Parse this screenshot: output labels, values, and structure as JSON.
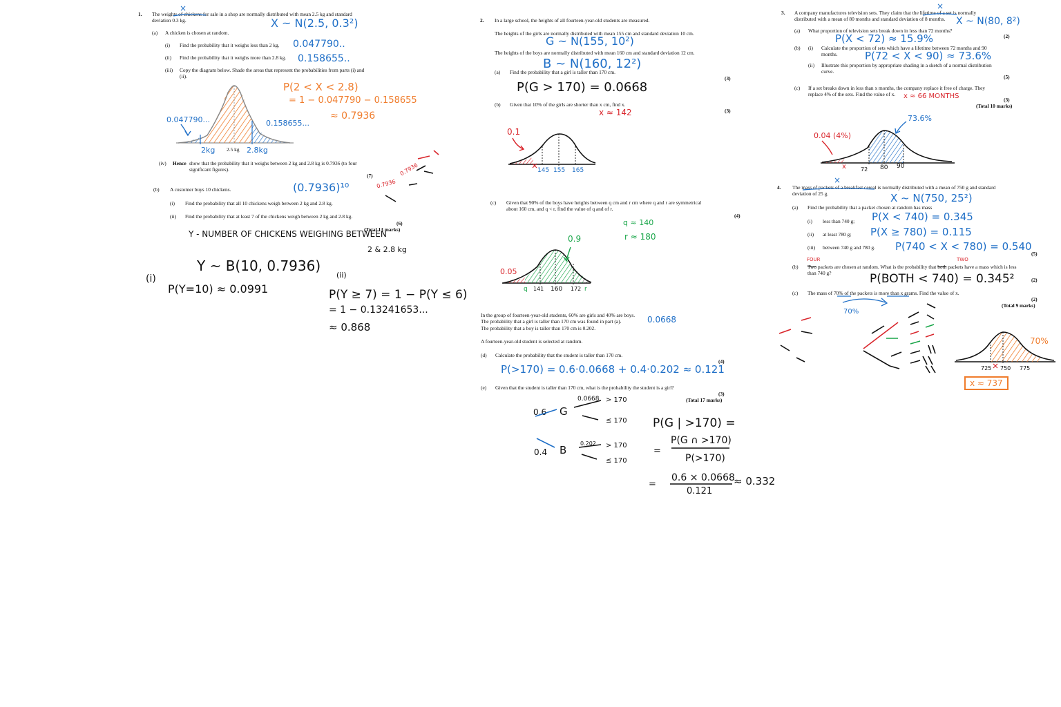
{
  "q1": {
    "num": "1.",
    "stem": "The weights of chickens for sale in a shop are normally distributed with mean 2.5 kg and standard deviation 0.3 kg.",
    "a_label": "(a)",
    "a_text": "A chicken is chosen at random.",
    "i_label": "(i)",
    "i_text": "Find the probability that it weighs less than 2 kg.",
    "ii_label": "(ii)",
    "ii_text": "Find the probability that it weighs more than 2.8 kg.",
    "iii_label": "(iii)",
    "iii_text": "Copy the diagram below. Shade the areas that represent the probabilities from parts (i) and (ii).",
    "diagram_axis": "2.5 kg",
    "iv_label": "(iv)",
    "iv_bold": "Hence",
    "iv_text": "show that the probability that it weighs between 2 kg and 2.8 kg is 0.7936 (to four significant figures).",
    "marks_a": "(7)",
    "b_label": "(b)",
    "b_text": "A customer buys 10 chickens.",
    "bi_label": "(i)",
    "bi_text": "Find the probability that all 10 chickens weigh between 2 kg and 2.8 kg.",
    "bii_label": "(ii)",
    "bii_text": "Find the probability that at least 7 of the chickens weigh between 2 kg and 2.8 kg.",
    "marks_b": "(6)",
    "total": "(Total 13 marks)"
  },
  "q1_hw": {
    "dist": "X ~ N(2.5, 0.3²)",
    "x_mark": "×",
    "ans_i": "0.047790..",
    "ans_ii": "0.158655..",
    "p_between": "P(2 < X < 2.8)",
    "calc1": "= 1 − 0.047790 − 0.158655",
    "calc2": "≈ 0.7936",
    "left_val": "0.047790...",
    "right_val": "0.158655...",
    "lbl_2kg": "2kg",
    "lbl_28kg": "2.8kg",
    "pow": "(0.7936)¹⁰",
    "y_def1": "Y - NUMBER OF CHICKENS WEIGHING BETWEEN",
    "y_def2": "2 & 2.8 kg",
    "y_dist": "Y ~ B(10, 0.7936)",
    "bi_lbl": "(i)",
    "bi_ans": "P(Y=10) ≈ 0.0991",
    "bii_lbl": "(ii)",
    "bii_1": "P(Y ≥ 7) = 1 − P(Y ≤ 6)",
    "bii_2": "= 1 − 0.13241653...",
    "bii_3": "≈ 0.868",
    "tree_a": "0.7936",
    "tree_b": "0.7936"
  },
  "q2": {
    "num": "2.",
    "stem": "In a large school, the heights of all fourteen-year-old students are measured.",
    "girls": "The heights of the girls are normally distributed with mean 155 cm and standard deviation 10 cm.",
    "boys": "The heights of the boys are normally distributed with mean 160 cm and standard deviation 12 cm.",
    "a_label": "(a)",
    "a_text": "Find the probability that a girl is taller than 170 cm.",
    "marks_a": "(3)",
    "b_label": "(b)",
    "b_text": "Given that 10% of the girls are shorter than x cm, find x.",
    "marks_b": "(3)",
    "c_label": "(c)",
    "c_text": "Given that 90% of the boys have heights between q cm and r cm where q and r are symmetrical about 160 cm, and q < r, find the value of q and of r.",
    "marks_c": "(4)",
    "group1": "In the group of fourteen-year-old students, 60% are girls and 40% are boys.",
    "group2": "The probability that a girl is taller than 170 cm was found in part (a).",
    "group3": "The probability that a boy is taller than 170 cm is 0.202.",
    "random": "A fourteen-year-old student is selected at random.",
    "d_label": "(d)",
    "d_text": "Calculate the probability that the student is taller than 170 cm.",
    "marks_d": "(4)",
    "e_label": "(e)",
    "e_text": "Given that the student is taller than 170 cm, what is the probability the student is a girl?",
    "marks_e": "(3)",
    "total": "(Total 17 marks)"
  },
  "q2_hw": {
    "g_dist": "G ~ N(155, 10²)",
    "b_dist": "B ~ N(160, 12²)",
    "a_ans": "P(G > 170) = 0.0668",
    "b_ans": "x ≈ 142",
    "b_p": "0.1",
    "b_ticks": [
      "145",
      "155",
      "165"
    ],
    "c_q": "q ≈ 140",
    "c_r": "r ≈ 180",
    "c_p": "0.9",
    "c_tail": "0.05",
    "c_ticks": [
      "q",
      "141",
      "160",
      "172",
      "r"
    ],
    "group_ans": "0.0668",
    "d_ans": "P(>170) = 0.6·0.0668 + 0.4·0.202 ≈ 0.121",
    "tree_g_p": "0.6",
    "tree_g": "G",
    "tree_g_up": "0.0668",
    "tree_g_top": "> 170",
    "tree_g_bot": "≤ 170",
    "tree_b_p": "0.4",
    "tree_b": "B",
    "tree_b_up": "0.202",
    "tree_b_top": "> 170",
    "tree_b_bot": "≤ 170",
    "e_1": "P(G | >170) =",
    "e_num": "P(G ∩ >170)",
    "e_den": "P(>170)",
    "e_eq": "=",
    "e_num2": "0.6 × 0.0668",
    "e_den2": "0.121",
    "e_res": "≈ 0.332"
  },
  "q3": {
    "num": "3.",
    "stem": "A company manufactures television sets. They claim that the lifetime of a set is normally distributed with a mean of 80 months and standard deviation of 8 months.",
    "a_label": "(a)",
    "a_text": "What proportion of television sets break down in less than 72 months?",
    "marks_a": "(2)",
    "b_label": "(b)",
    "bi_label": "(i)",
    "bi_text": "Calculate the proportion of sets which have a lifetime between 72 months and 90 months.",
    "bii_label": "(ii)",
    "bii_text": "Illustrate this proportion by appropriate shading in a sketch of a normal distribution curve.",
    "marks_b": "(5)",
    "c_label": "(c)",
    "c_text": "If a set breaks down in less than x months, the company replace it free of charge. They replace 4% of the sets. Find the value of x.",
    "marks_c": "(3)",
    "total": "(Total 10 marks)"
  },
  "q3_hw": {
    "dist": "X ~ N(80, 8²)",
    "x_mark": "×",
    "a_ans": "P(X < 72) ≈ 15.9%",
    "b_ans": "P(72 < X < 90) ≈ 73.6%",
    "c_ans": "x ≈ 66 MONTHS",
    "sketch_p": "73.6%",
    "sketch_tail": "0.04 (4%)",
    "ticks": [
      "x",
      "72",
      "80",
      "90"
    ]
  },
  "q4": {
    "num": "4.",
    "stem": "The mass of packets of a breakfast cereal is normally distributed with a mean of 750 g and standard deviation of 25 g.",
    "a_label": "(a)",
    "a_text": "Find the probability that a packet chosen at random has mass",
    "i_label": "(i)",
    "i_text": "less than 740 g;",
    "ii_label": "(ii)",
    "ii_text": "at least 780 g;",
    "iii_label": "(iii)",
    "iii_text": "between 740 g and 780 g.",
    "marks_a": "(5)",
    "b_label": "(b)",
    "b_strike1": "Two",
    "b_text1": "packets are chosen at random. What is the probability that",
    "b_strike2": "both",
    "b_text2": "packets have a mass which is less than 740 g?",
    "marks_b": "(2)",
    "c_label": "(c)",
    "c_text": "The mass of 70% of the packets is more than x grams. Find the value of x.",
    "marks_c": "(2)",
    "total": "(Total 9 marks)"
  },
  "q4_hw": {
    "dist": "X ~ N(750, 25²)",
    "x_mark": "×",
    "i_ans": "P(X < 740) = 0.345",
    "ii_ans": "P(X ≥ 780) = 0.115",
    "iii_ans": "P(740 < X < 780) = 0.540",
    "four": "FOUR",
    "two": "TWO",
    "b_ans": "P(BOTH < 740) = 0.345²",
    "pct": "70%",
    "sketch_pct": "70%",
    "ticks": [
      "725",
      "750",
      "775"
    ],
    "x_ans": "x ≈ 737"
  }
}
